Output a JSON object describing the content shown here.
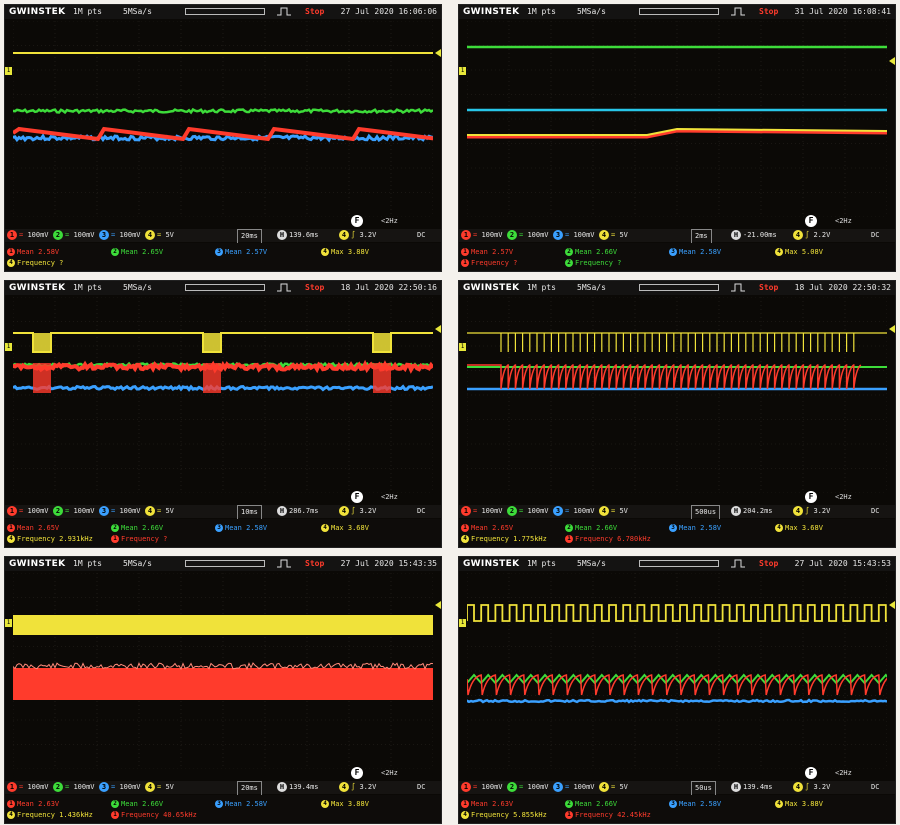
{
  "colors": {
    "ch1": "#f0e23a",
    "ch2": "#3ddc3a",
    "ch3": "#3aa0ff",
    "ch4": "#ff3b2c",
    "ch2b": "#28c6e8"
  },
  "scopes": [
    {
      "brand": "GWINSTEK",
      "points": "1M pts",
      "rate": "5MSa/s",
      "status": "Stop",
      "timestamp": "27 Jul 2020 16:06:06",
      "fn_key": "F",
      "fn_label": "<2Hz",
      "channels": [
        {
          "num": "1",
          "scale": "100mV"
        },
        {
          "num": "2",
          "scale": "100mV"
        },
        {
          "num": "3",
          "scale": "100mV"
        },
        {
          "num": "4",
          "scale": "5V"
        }
      ],
      "timebase": "20ms",
      "delay": "139.6ms",
      "trig_ch": "4",
      "trig_level": "3.2V",
      "coupling": "DC",
      "meas": [
        {
          "ch": "1",
          "text": "Mean 2.58V"
        },
        {
          "ch": "2",
          "text": "Mean 2.65V"
        },
        {
          "ch": "3",
          "text": "Mean 2.57V"
        },
        {
          "ch": "4",
          "text": "Max 3.88V"
        },
        {
          "ch": "4",
          "text": "Frequency ?"
        }
      ]
    },
    {
      "brand": "GWINSTEK",
      "points": "1M pts",
      "rate": "5MSa/s",
      "status": "Stop",
      "timestamp": "31 Jul 2020 16:08:41",
      "fn_key": "F",
      "fn_label": "<2Hz",
      "channels": [
        {
          "num": "1",
          "scale": "100mV"
        },
        {
          "num": "2",
          "scale": "100mV"
        },
        {
          "num": "3",
          "scale": "100mV"
        },
        {
          "num": "4",
          "scale": "5V"
        }
      ],
      "timebase": "2ms",
      "delay": "-21.00ms",
      "trig_ch": "4",
      "trig_level": "2.2V",
      "coupling": "DC",
      "meas": [
        {
          "ch": "1",
          "text": "Mean 2.57V"
        },
        {
          "ch": "2",
          "text": "Mean 2.66V"
        },
        {
          "ch": "3",
          "text": "Mean 2.58V"
        },
        {
          "ch": "4",
          "text": "Max 5.08V"
        },
        {
          "ch": "1",
          "text": "Frequency ?"
        },
        {
          "ch": "2",
          "text": "Frequency ?"
        }
      ]
    },
    {
      "brand": "GWINSTEK",
      "points": "1M pts",
      "rate": "5MSa/s",
      "status": "Stop",
      "timestamp": "18 Jul 2020 22:50:16",
      "fn_key": "F",
      "fn_label": "<2Hz",
      "channels": [
        {
          "num": "1",
          "scale": "100mV"
        },
        {
          "num": "2",
          "scale": "100mV"
        },
        {
          "num": "3",
          "scale": "100mV"
        },
        {
          "num": "4",
          "scale": "5V"
        }
      ],
      "timebase": "10ms",
      "delay": "286.7ms",
      "trig_ch": "4",
      "trig_level": "3.2V",
      "coupling": "DC",
      "meas": [
        {
          "ch": "1",
          "text": "Mean 2.65V"
        },
        {
          "ch": "2",
          "text": "Mean 2.66V"
        },
        {
          "ch": "3",
          "text": "Mean 2.58V"
        },
        {
          "ch": "4",
          "text": "Max 3.68V"
        },
        {
          "ch": "4",
          "text": "Frequency 2.931kHz"
        },
        {
          "ch": "1",
          "text": "Frequency ?"
        }
      ]
    },
    {
      "brand": "GWINSTEK",
      "points": "1M pts",
      "rate": "5MSa/s",
      "status": "Stop",
      "timestamp": "18 Jul 2020 22:50:32",
      "fn_key": "F",
      "fn_label": "<2Hz",
      "channels": [
        {
          "num": "1",
          "scale": "100mV"
        },
        {
          "num": "2",
          "scale": "100mV"
        },
        {
          "num": "3",
          "scale": "100mV"
        },
        {
          "num": "4",
          "scale": "5V"
        }
      ],
      "timebase": "500us",
      "delay": "204.2ms",
      "trig_ch": "4",
      "trig_level": "3.2V",
      "coupling": "DC",
      "meas": [
        {
          "ch": "1",
          "text": "Mean 2.65V"
        },
        {
          "ch": "2",
          "text": "Mean 2.66V"
        },
        {
          "ch": "3",
          "text": "Mean 2.58V"
        },
        {
          "ch": "4",
          "text": "Max 3.68V"
        },
        {
          "ch": "4",
          "text": "Frequency 1.775kHz"
        },
        {
          "ch": "1",
          "text": "Frequency 6.780kHz"
        }
      ]
    },
    {
      "brand": "GWINSTEK",
      "points": "1M pts",
      "rate": "5MSa/s",
      "status": "Stop",
      "timestamp": "27 Jul 2020 15:43:35",
      "fn_key": "F",
      "fn_label": "<2Hz",
      "channels": [
        {
          "num": "1",
          "scale": "100mV"
        },
        {
          "num": "2",
          "scale": "100mV"
        },
        {
          "num": "3",
          "scale": "100mV"
        },
        {
          "num": "4",
          "scale": "5V"
        }
      ],
      "timebase": "20ms",
      "delay": "139.4ms",
      "trig_ch": "4",
      "trig_level": "3.2V",
      "coupling": "DC",
      "meas": [
        {
          "ch": "1",
          "text": "Mean 2.63V"
        },
        {
          "ch": "2",
          "text": "Mean 2.66V"
        },
        {
          "ch": "3",
          "text": "Mean 2.58V"
        },
        {
          "ch": "4",
          "text": "Max 3.88V"
        },
        {
          "ch": "4",
          "text": "Frequency 1.436kHz"
        },
        {
          "ch": "1",
          "text": "Frequency 40.65kHz"
        }
      ]
    },
    {
      "brand": "GWINSTEK",
      "points": "1M pts",
      "rate": "5MSa/s",
      "status": "Stop",
      "timestamp": "27 Jul 2020 15:43:53",
      "fn_key": "F",
      "fn_label": "<2Hz",
      "channels": [
        {
          "num": "1",
          "scale": "100mV"
        },
        {
          "num": "2",
          "scale": "100mV"
        },
        {
          "num": "3",
          "scale": "100mV"
        },
        {
          "num": "4",
          "scale": "5V"
        }
      ],
      "timebase": "50us",
      "delay": "139.4ms",
      "trig_ch": "4",
      "trig_level": "3.2V",
      "coupling": "DC",
      "meas": [
        {
          "ch": "1",
          "text": "Mean 2.63V"
        },
        {
          "ch": "2",
          "text": "Mean 2.66V"
        },
        {
          "ch": "3",
          "text": "Mean 2.58V"
        },
        {
          "ch": "4",
          "text": "Max 3.88V"
        },
        {
          "ch": "4",
          "text": "Frequency 5.855kHz"
        },
        {
          "ch": "1",
          "text": "Frequency 42.45kHz"
        }
      ]
    }
  ]
}
